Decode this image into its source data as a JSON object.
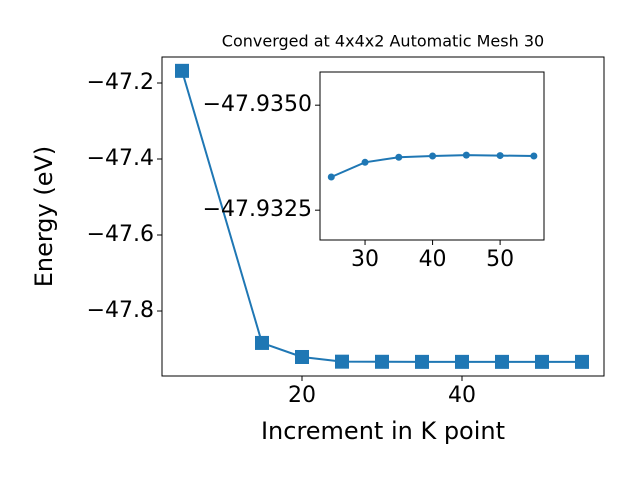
{
  "chart_data": [
    {
      "type": "line",
      "title": "Converged at 4x4x2 Automatic Mesh 30",
      "xlabel": "Increment in K point",
      "ylabel": "Energy (eV)",
      "x": [
        5,
        15,
        20,
        25,
        30,
        35,
        40,
        45,
        50,
        55
      ],
      "values": [
        -47.168,
        -47.884,
        -47.921,
        -47.9333,
        -47.9336,
        -47.9338,
        -47.9338,
        -47.9338,
        -47.9338,
        -47.9338
      ],
      "color": "#1f77b4",
      "marker": "square",
      "xlim": [
        2.5,
        57.75
      ],
      "xticks": [
        20,
        40
      ],
      "ylim": [
        -47.971,
        -47.1316
      ],
      "yticks": [
        {
          "value": -47.2,
          "label": "−47.2"
        },
        {
          "value": -47.4,
          "label": "−47.4"
        },
        {
          "value": -47.6,
          "label": "−47.6"
        },
        {
          "value": -47.8,
          "label": "−47.8"
        }
      ]
    },
    {
      "type": "line",
      "x": [
        25,
        30,
        35,
        40,
        45,
        50,
        55
      ],
      "values": [
        -47.93329,
        -47.93364,
        -47.93376,
        -47.93379,
        -47.93381,
        -47.9338,
        -47.93379
      ],
      "color": "#1f77b4",
      "marker": "circle",
      "xlim": [
        23.33,
        56.5
      ],
      "xticks": [
        30,
        40,
        50
      ],
      "ylim": [
        -47.93179,
        -47.93579
      ],
      "yticks": [
        {
          "value": -47.935,
          "label": "−47.9350"
        },
        {
          "value": -47.9325,
          "label": "−47.9325"
        }
      ]
    }
  ]
}
